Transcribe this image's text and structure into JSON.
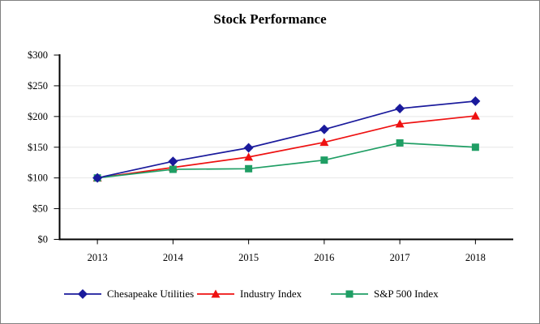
{
  "chart_data": {
    "type": "line",
    "title": "Stock Performance",
    "categories": [
      "2013",
      "2014",
      "2015",
      "2016",
      "2017",
      "2018"
    ],
    "series": [
      {
        "name": "Chesapeake Utilities",
        "marker": "diamond",
        "color": "#1A1A9C",
        "values": [
          100,
          127,
          149,
          179,
          213,
          225
        ]
      },
      {
        "name": "Industry Index",
        "marker": "triangle",
        "color": "#EE1111",
        "values": [
          100,
          117,
          134,
          158,
          188,
          201
        ]
      },
      {
        "name": "S&P 500 Index",
        "marker": "square",
        "color": "#1F9E64",
        "values": [
          100,
          114,
          115,
          129,
          157,
          150
        ]
      }
    ],
    "xlabel": "",
    "ylabel": "",
    "ylim": [
      0,
      300
    ],
    "y_tick_step": 50,
    "y_tick_labels": [
      "$0",
      "$50",
      "$100",
      "$150",
      "$200",
      "$250",
      "$300"
    ],
    "grid": true,
    "gridline_color": "#E6E6E6",
    "axis_color": "#000000",
    "legend_position": "bottom"
  }
}
